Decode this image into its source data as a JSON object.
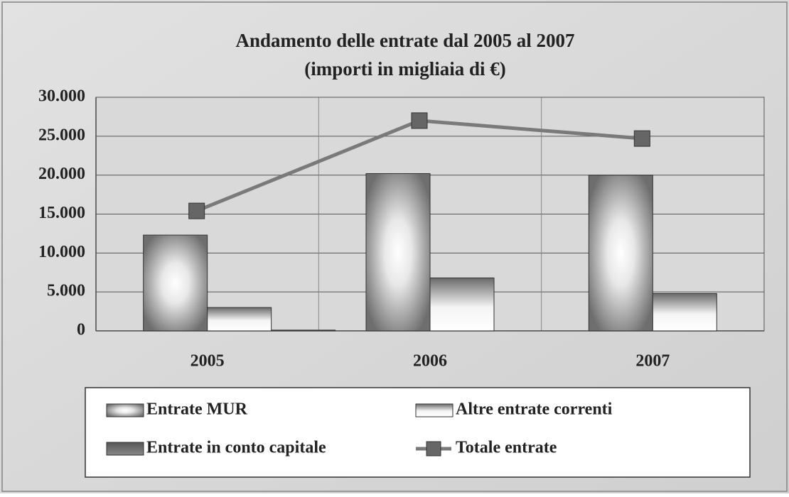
{
  "chart_data": {
    "type": "bar",
    "title": "Andamento delle entrate dal 2005 al 2007",
    "subtitle": "(importi in migliaia di €)",
    "categories": [
      "2005",
      "2006",
      "2007"
    ],
    "series": [
      {
        "name": "Entrate MUR",
        "color": "#8a8a8a",
        "values": [
          12300,
          20200,
          20000
        ]
      },
      {
        "name": "Altre entrate correnti",
        "color": "#9a9a9a",
        "values": [
          3000,
          6800,
          4800
        ]
      },
      {
        "name": "Entrate in conto capitale",
        "color": "#707070",
        "values": [
          100,
          0,
          0
        ]
      },
      {
        "name": "Totale entrate",
        "color": "#7a7a7a",
        "type": "line",
        "values": [
          15400,
          27000,
          24700
        ]
      }
    ],
    "ylim": [
      0,
      30000
    ],
    "yticks": [
      0,
      {
        "value": 5000,
        "label": "5.000"
      },
      {
        "value": 10000,
        "label": "10.000"
      },
      {
        "value": 15000,
        "label": "15.000"
      },
      {
        "value": 20000,
        "label": "20.000"
      },
      {
        "value": 25000,
        "label": "25.000"
      },
      {
        "value": 30000,
        "label": "30.000"
      }
    ],
    "grid": true,
    "legend": "bottom"
  }
}
